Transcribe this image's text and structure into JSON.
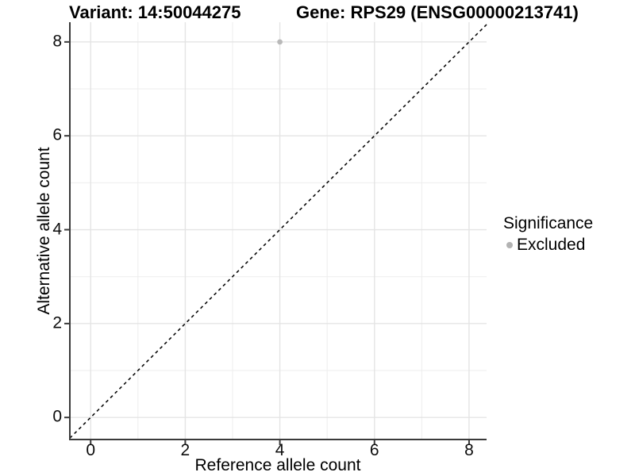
{
  "titles": {
    "left": "Variant: 14:50044275",
    "right": "Gene: RPS29 (ENSG00000213741)"
  },
  "axes": {
    "x": {
      "label": "Reference allele count",
      "tick_labels": [
        "0",
        "2",
        "4",
        "6",
        "8"
      ]
    },
    "y": {
      "label": "Alternative allele count",
      "tick_labels": [
        "0",
        "2",
        "4",
        "6",
        "8"
      ]
    }
  },
  "legend": {
    "title": "Significance",
    "items": [
      {
        "label": "Excluded",
        "color": "#b3b3b3"
      }
    ]
  },
  "colors": {
    "background": "#ffffff",
    "grid_major": "#e4e4e4",
    "grid_minor": "#ededed",
    "axis_line": "#3a3a3a",
    "identity_line": "#0a0a0a",
    "point": "#b9b9b9",
    "text": "#000000"
  },
  "chart_data": {
    "type": "scatter",
    "title": "Variant: 14:50044275   Gene: RPS29 (ENSG00000213741)",
    "xlabel": "Reference allele count",
    "ylabel": "Alternative allele count",
    "xlim": [
      -0.44,
      8.37
    ],
    "ylim": [
      -0.47,
      8.42
    ],
    "x_ticks": [
      0,
      2,
      4,
      6,
      8
    ],
    "y_ticks": [
      0,
      2,
      4,
      6,
      8
    ],
    "minor_gridlines": [
      1,
      3,
      5,
      7
    ],
    "grid": "on",
    "legend_title": "Significance",
    "legend_position": "right",
    "series": [
      {
        "name": "Excluded",
        "color": "#b9b9b9",
        "points": [
          {
            "x": 4,
            "y": 8
          }
        ]
      }
    ],
    "reference_line": {
      "kind": "identity",
      "slope": 1,
      "intercept": 0,
      "style": "dashed",
      "color": "#0a0a0a"
    }
  }
}
